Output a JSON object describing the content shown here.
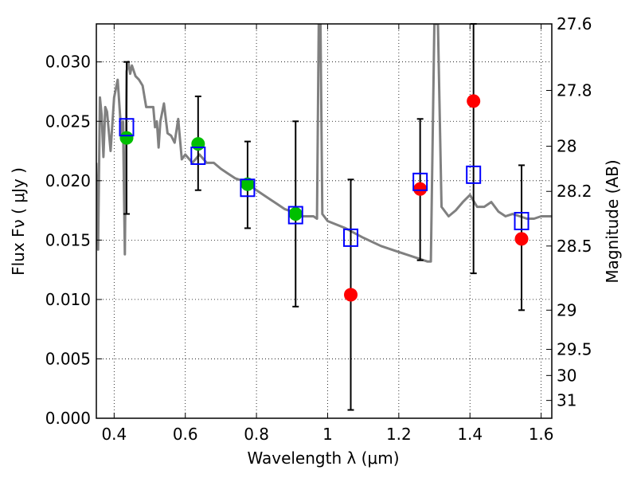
{
  "chart_data": {
    "type": "scatter",
    "xlabel": "Wavelength  λ (μm)",
    "ylabel": "Flux  Fν  ( μJy )",
    "y2label": "Magnitude (AB)",
    "xlim": [
      0.35,
      1.63
    ],
    "ylim": [
      0.0,
      0.0332
    ],
    "grid": true,
    "x_ticks": [
      0.4,
      0.6,
      0.8,
      1.0,
      1.2,
      1.4,
      1.6
    ],
    "x_tick_labels": [
      "0.4",
      "0.6",
      "0.8",
      "1",
      "1.2",
      "1.4",
      "1.6"
    ],
    "y_ticks": [
      0.0,
      0.005,
      0.01,
      0.015,
      0.02,
      0.025,
      0.03
    ],
    "y_tick_labels": [
      "0.000",
      "0.005",
      "0.010",
      "0.015",
      "0.020",
      "0.025",
      "0.030"
    ],
    "y2_ticks": [
      {
        "label": "27.6",
        "flux": 0.0332
      },
      {
        "label": "27.8",
        "flux": 0.0276
      },
      {
        "label": "28",
        "flux": 0.0229
      },
      {
        "label": "28.2",
        "flux": 0.0191
      },
      {
        "label": "28.5",
        "flux": 0.0145
      },
      {
        "label": "29",
        "flux": 0.0091
      },
      {
        "label": "29.5",
        "flux": 0.0058
      },
      {
        "label": "30",
        "flux": 0.0036
      },
      {
        "label": "31",
        "flux": 0.0015
      }
    ],
    "series": [
      {
        "marker": "circle-green",
        "color": "#00bf00",
        "x": [
          0.435,
          0.636,
          0.775,
          0.91
        ],
        "y": [
          0.0236,
          0.0231,
          0.0197,
          0.0172
        ],
        "yerr_low": [
          0.0172,
          0.0192,
          0.016,
          0.0094
        ],
        "yerr_high": [
          0.03,
          0.0271,
          0.0233,
          0.025
        ]
      },
      {
        "marker": "circle-red",
        "color": "#ff0000",
        "x": [
          1.065,
          1.26,
          1.41,
          1.545
        ],
        "y": [
          0.0104,
          0.0193,
          0.0267,
          0.0151
        ],
        "yerr_low": [
          0.0007,
          0.0133,
          0.0122,
          0.0091
        ],
        "yerr_high": [
          0.0201,
          0.0252,
          0.0332,
          0.0213
        ]
      },
      {
        "marker": "open-square-blue",
        "color": "#0000ff",
        "x": [
          0.435,
          0.636,
          0.775,
          0.91,
          1.065,
          1.26,
          1.41,
          1.545
        ],
        "y": [
          0.0245,
          0.0221,
          0.0194,
          0.0171,
          0.0152,
          0.0199,
          0.0205,
          0.0166
        ]
      },
      {
        "marker": "line-gray",
        "color": "#808080",
        "x": [
          0.35,
          0.355,
          0.36,
          0.365,
          0.37,
          0.375,
          0.38,
          0.39,
          0.4,
          0.41,
          0.42,
          0.425,
          0.43,
          0.435,
          0.44,
          0.445,
          0.45,
          0.46,
          0.47,
          0.48,
          0.49,
          0.5,
          0.51,
          0.515,
          0.52,
          0.525,
          0.53,
          0.54,
          0.55,
          0.56,
          0.57,
          0.58,
          0.59,
          0.6,
          0.62,
          0.64,
          0.66,
          0.68,
          0.7,
          0.72,
          0.74,
          0.76,
          0.78,
          0.8,
          0.82,
          0.84,
          0.86,
          0.88,
          0.9,
          0.92,
          0.94,
          0.96,
          0.97,
          0.975,
          0.98,
          0.985,
          0.99,
          1.0,
          1.05,
          1.1,
          1.15,
          1.2,
          1.25,
          1.28,
          1.29,
          1.3,
          1.305,
          1.31,
          1.32,
          1.34,
          1.36,
          1.38,
          1.4,
          1.42,
          1.44,
          1.46,
          1.48,
          1.5,
          1.52,
          1.54,
          1.56,
          1.58,
          1.6,
          1.63
        ],
        "y": [
          0.0215,
          0.0142,
          0.027,
          0.0255,
          0.022,
          0.0262,
          0.0258,
          0.0225,
          0.027,
          0.0285,
          0.024,
          0.025,
          0.0138,
          0.0292,
          0.03,
          0.029,
          0.0297,
          0.0288,
          0.0285,
          0.028,
          0.0262,
          0.0262,
          0.0262,
          0.0245,
          0.025,
          0.0228,
          0.025,
          0.0265,
          0.024,
          0.0238,
          0.0232,
          0.0252,
          0.0218,
          0.0222,
          0.0215,
          0.0222,
          0.0215,
          0.0215,
          0.021,
          0.0206,
          0.0202,
          0.02,
          0.0196,
          0.0192,
          0.0188,
          0.0184,
          0.018,
          0.0176,
          0.0174,
          0.017,
          0.017,
          0.017,
          0.0168,
          0.0332,
          0.0332,
          0.0172,
          0.017,
          0.0166,
          0.016,
          0.0152,
          0.0145,
          0.014,
          0.0135,
          0.0132,
          0.0132,
          0.0332,
          0.0332,
          0.0332,
          0.0178,
          0.017,
          0.0175,
          0.0182,
          0.0188,
          0.0178,
          0.0178,
          0.0182,
          0.0174,
          0.017,
          0.0172,
          0.017,
          0.0168,
          0.0168,
          0.017,
          0.017
        ]
      }
    ]
  }
}
